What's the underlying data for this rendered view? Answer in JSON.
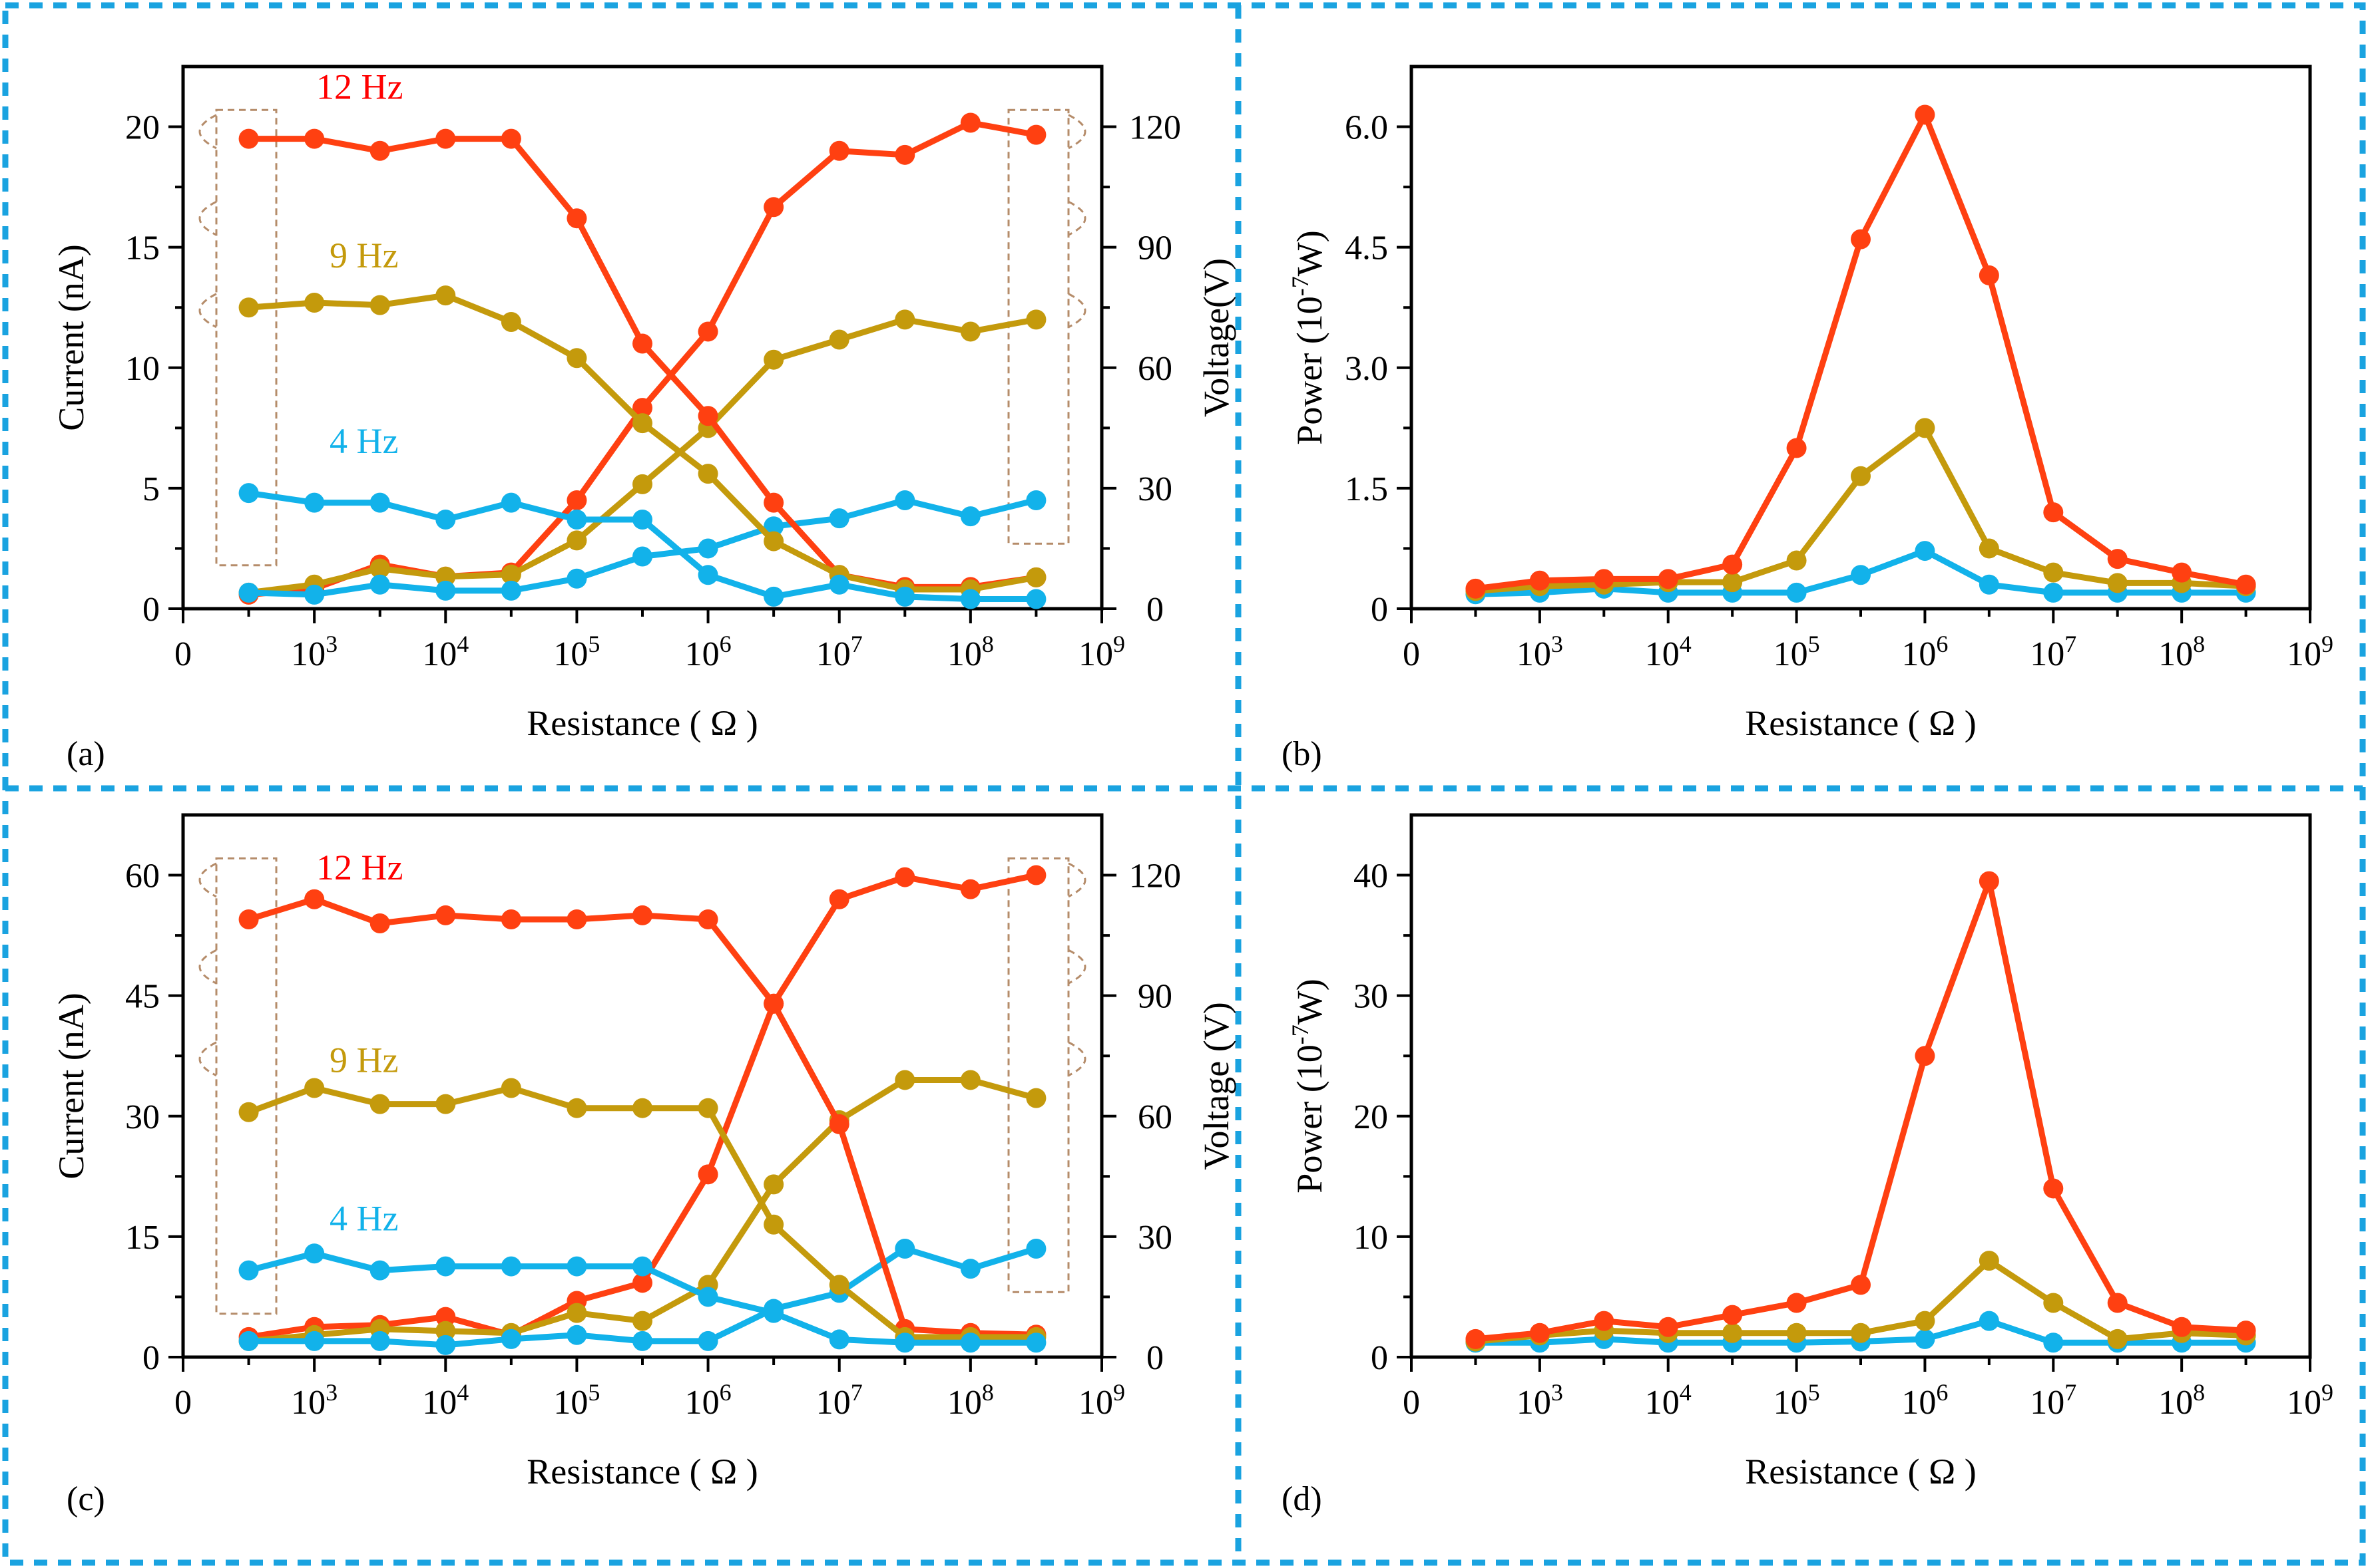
{
  "colors": {
    "red": "#ff0000",
    "orange_red": "#ff4011",
    "gold": "#c49a0c",
    "blue": "#12b2ea",
    "bracket": "#b58c6a",
    "divider": "#1aa3e0"
  },
  "chart_data": [
    {
      "id": "a",
      "type": "line",
      "panel_label": "(a)",
      "xlabel": "Resistance ( Ω )",
      "ylabel": "Current (nA)",
      "y2label": "Voltage(V)",
      "x_scale": "log10",
      "xlim": [
        2,
        9
      ],
      "x_ticks": [
        "0",
        "10^3",
        "10^4",
        "10^5",
        "10^6",
        "10^7",
        "10^8",
        "10^9"
      ],
      "ylim": [
        0,
        22.5
      ],
      "y_ticks": [
        "0",
        "5",
        "10",
        "15",
        "20"
      ],
      "y2lim": [
        0,
        135
      ],
      "y2_ticks": [
        "0",
        "30",
        "60",
        "90",
        "120"
      ],
      "x": [
        2.5,
        3,
        3.5,
        4,
        4.5,
        5,
        5.5,
        6,
        6.5,
        7,
        7.5,
        8,
        8.5
      ],
      "current": [
        {
          "name": "12 Hz",
          "values": [
            19.5,
            19.5,
            19,
            19.5,
            19.5,
            16.2,
            11,
            8,
            4.4,
            1.4,
            0.9,
            0.9,
            1.3
          ]
        },
        {
          "name": "9 Hz",
          "values": [
            12.5,
            12.7,
            12.6,
            13,
            11.9,
            10.4,
            7.7,
            5.6,
            2.8,
            1.4,
            0.8,
            0.8,
            1.3
          ]
        },
        {
          "name": "4 Hz",
          "values": [
            4.8,
            4.4,
            4.4,
            3.7,
            4.4,
            3.7,
            3.7,
            1.4,
            0.5,
            1,
            0.5,
            0.4,
            0.4
          ]
        }
      ],
      "voltage": [
        {
          "name": "12 Hz",
          "values": [
            3.5,
            5,
            11,
            8,
            9,
            27,
            50,
            69,
            100,
            114,
            113,
            121,
            118
          ]
        },
        {
          "name": "9 Hz",
          "values": [
            4,
            6,
            10,
            8,
            8.5,
            17,
            31,
            45,
            62,
            67,
            72,
            69,
            72
          ]
        },
        {
          "name": "4 Hz",
          "values": [
            4,
            3.5,
            6,
            4.5,
            4.5,
            7.5,
            13,
            15,
            20.5,
            22.5,
            27,
            23,
            27
          ]
        }
      ],
      "series_labels": [
        "12 Hz",
        "9 Hz",
        "4 Hz"
      ]
    },
    {
      "id": "b",
      "type": "line",
      "panel_label": "(b)",
      "xlabel": "Resistance ( Ω )",
      "ylabel": "Power (10^-7W)",
      "x_scale": "log10",
      "xlim": [
        2,
        9
      ],
      "x_ticks": [
        "0",
        "10^3",
        "10^4",
        "10^5",
        "10^6",
        "10^7",
        "10^8",
        "10^9"
      ],
      "ylim": [
        0,
        6.75
      ],
      "y_ticks": [
        "0",
        "1.5",
        "3.0",
        "4.5",
        "6.0"
      ],
      "x": [
        2.5,
        3,
        3.5,
        4,
        4.5,
        5,
        5.5,
        6,
        6.5,
        7,
        7.5,
        8,
        8.5
      ],
      "series": [
        {
          "name": "12 Hz",
          "values": [
            0.25,
            0.35,
            0.37,
            0.37,
            0.55,
            2.0,
            4.6,
            6.15,
            4.15,
            1.2,
            0.62,
            0.45,
            0.3
          ]
        },
        {
          "name": "9 Hz",
          "values": [
            0.22,
            0.28,
            0.3,
            0.33,
            0.33,
            0.6,
            1.65,
            2.25,
            0.75,
            0.45,
            0.32,
            0.32,
            0.28
          ]
        },
        {
          "name": "4 Hz",
          "values": [
            0.18,
            0.2,
            0.25,
            0.2,
            0.2,
            0.2,
            0.42,
            0.72,
            0.3,
            0.2,
            0.2,
            0.2,
            0.2
          ]
        }
      ]
    },
    {
      "id": "c",
      "type": "line",
      "panel_label": "(c)",
      "xlabel": "Resistance ( Ω )",
      "ylabel": "Current (nA)",
      "y2label": "Voltage (V)",
      "x_scale": "log10",
      "xlim": [
        2,
        9
      ],
      "x_ticks": [
        "0",
        "10^3",
        "10^4",
        "10^5",
        "10^6",
        "10^7",
        "10^8",
        "10^9"
      ],
      "ylim": [
        0,
        67.5
      ],
      "y_ticks": [
        "0",
        "15",
        "30",
        "45",
        "60"
      ],
      "y2lim": [
        0,
        135
      ],
      "y2_ticks": [
        "0",
        "30",
        "60",
        "90",
        "120"
      ],
      "x": [
        2.5,
        3,
        3.5,
        4,
        4.5,
        5,
        5.5,
        6,
        6.5,
        7,
        7.5,
        8,
        8.5
      ],
      "current": [
        {
          "name": "12 Hz",
          "values": [
            54.5,
            57,
            54,
            55,
            54.5,
            54.5,
            55,
            54.5,
            44,
            29,
            3.5,
            3,
            2.8
          ]
        },
        {
          "name": "9 Hz",
          "values": [
            30.5,
            33.5,
            31.5,
            31.5,
            33.5,
            31,
            31,
            31,
            16.5,
            9,
            2.5,
            2.5,
            2.5
          ]
        },
        {
          "name": "4 Hz",
          "values": [
            10.8,
            12.9,
            10.8,
            11.3,
            11.3,
            11.3,
            11.3,
            7.5,
            5.5,
            2.2,
            1.8,
            1.8,
            1.8
          ]
        }
      ],
      "voltage": [
        {
          "name": "12 Hz",
          "values": [
            5,
            7.5,
            8,
            10,
            5.5,
            14,
            18.5,
            45.5,
            88,
            114,
            119.5,
            116.5,
            120
          ]
        },
        {
          "name": "9 Hz",
          "values": [
            4,
            5.5,
            7,
            6.5,
            6,
            11,
            9,
            18,
            43,
            59,
            69,
            69,
            64.5
          ]
        },
        {
          "name": "4 Hz",
          "values": [
            4,
            4,
            4,
            3,
            4.5,
            5.5,
            4,
            4,
            12,
            16,
            27,
            22,
            27
          ]
        }
      ],
      "series_labels": [
        "12 Hz",
        "9 Hz",
        "4 Hz"
      ]
    },
    {
      "id": "d",
      "type": "line",
      "panel_label": "(d)",
      "xlabel": "Resistance ( Ω )",
      "ylabel": "Power (10^-7W)",
      "x_scale": "log10",
      "xlim": [
        2,
        9
      ],
      "x_ticks": [
        "0",
        "10^3",
        "10^4",
        "10^5",
        "10^6",
        "10^7",
        "10^8",
        "10^9"
      ],
      "ylim": [
        0,
        45
      ],
      "y_ticks": [
        "0",
        "10",
        "20",
        "30",
        "40"
      ],
      "x": [
        2.5,
        3,
        3.5,
        4,
        4.5,
        5,
        5.5,
        6,
        6.5,
        7,
        7.5,
        8,
        8.5
      ],
      "series": [
        {
          "name": "12 Hz",
          "values": [
            1.5,
            2,
            3,
            2.5,
            3.5,
            4.5,
            6,
            25,
            39.5,
            14,
            4.5,
            2.5,
            2.2
          ]
        },
        {
          "name": "9 Hz",
          "values": [
            1.3,
            1.8,
            2.2,
            2,
            2,
            2,
            2,
            3,
            8,
            4.5,
            1.5,
            2,
            1.8
          ]
        },
        {
          "name": "4 Hz",
          "values": [
            1.2,
            1.2,
            1.5,
            1.2,
            1.2,
            1.2,
            1.3,
            1.5,
            3,
            1.2,
            1.2,
            1.2,
            1.2
          ]
        }
      ]
    }
  ]
}
